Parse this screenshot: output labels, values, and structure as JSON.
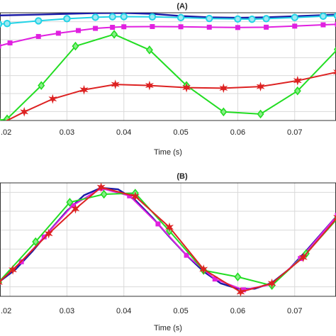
{
  "chart_data": [
    {
      "type": "line",
      "title": "(A)",
      "xlabel": "Time (s)",
      "ylabel": "",
      "xlim": [
        0.018,
        0.0775
      ],
      "ylim": [
        0,
        1
      ],
      "x_ticks": [
        0.02,
        0.03,
        0.04,
        0.05,
        0.06,
        0.07
      ],
      "x_tick_labels": [
        ".02",
        "0.03",
        "0.04",
        "0.05",
        "0.06",
        "0.07"
      ],
      "y_gridlines": 6,
      "grid": true,
      "series": [
        {
          "color": "#1a1aa6",
          "marker": "none",
          "points": [
            [
              0.018,
              0.975
            ],
            [
              0.025,
              0.983
            ],
            [
              0.03,
              0.99
            ],
            [
              0.035,
              0.997
            ],
            [
              0.04,
              0.998
            ],
            [
              0.045,
              0.99
            ],
            [
              0.05,
              0.97
            ],
            [
              0.055,
              0.958
            ],
            [
              0.06,
              0.953
            ],
            [
              0.065,
              0.958
            ],
            [
              0.07,
              0.968
            ],
            [
              0.075,
              0.978
            ],
            [
              0.0775,
              0.982
            ]
          ]
        },
        {
          "color": "#22d3e6",
          "marker": "circle",
          "points": [
            [
              0.018,
              0.895
            ],
            [
              0.0195,
              0.9
            ],
            [
              0.025,
              0.925
            ],
            [
              0.03,
              0.945
            ],
            [
              0.035,
              0.958
            ],
            [
              0.038,
              0.963
            ],
            [
              0.04,
              0.964
            ],
            [
              0.045,
              0.962
            ],
            [
              0.05,
              0.955
            ],
            [
              0.055,
              0.947
            ],
            [
              0.06,
              0.942
            ],
            [
              0.0625,
              0.94
            ],
            [
              0.065,
              0.945
            ],
            [
              0.07,
              0.956
            ],
            [
              0.075,
              0.968
            ],
            [
              0.0775,
              0.972
            ]
          ]
        },
        {
          "color": "#e020e0",
          "marker": "square",
          "points": [
            [
              0.018,
              0.69
            ],
            [
              0.02,
              0.72
            ],
            [
              0.025,
              0.78
            ],
            [
              0.0285,
              0.81
            ],
            [
              0.032,
              0.835
            ],
            [
              0.035,
              0.855
            ],
            [
              0.038,
              0.865
            ],
            [
              0.04,
              0.87
            ],
            [
              0.045,
              0.872
            ],
            [
              0.05,
              0.87
            ],
            [
              0.055,
              0.866
            ],
            [
              0.06,
              0.863
            ],
            [
              0.065,
              0.866
            ],
            [
              0.07,
              0.876
            ],
            [
              0.075,
              0.888
            ],
            [
              0.0775,
              0.893
            ]
          ]
        },
        {
          "color": "#22dd22",
          "marker": "diamond",
          "points": [
            [
              0.018,
              0.0
            ],
            [
              0.0195,
              0.015
            ],
            [
              0.0255,
              0.325
            ],
            [
              0.0315,
              0.69
            ],
            [
              0.0383,
              0.8
            ],
            [
              0.0445,
              0.655
            ],
            [
              0.051,
              0.325
            ],
            [
              0.0575,
              0.08
            ],
            [
              0.064,
              0.06
            ],
            [
              0.0705,
              0.275
            ],
            [
              0.0775,
              0.66
            ]
          ]
        },
        {
          "color": "#dd2222",
          "marker": "star",
          "points": [
            [
              0.018,
              -0.04
            ],
            [
              0.0225,
              0.08
            ],
            [
              0.0275,
              0.2
            ],
            [
              0.033,
              0.285
            ],
            [
              0.0385,
              0.335
            ],
            [
              0.0445,
              0.325
            ],
            [
              0.051,
              0.305
            ],
            [
              0.0575,
              0.3
            ],
            [
              0.064,
              0.315
            ],
            [
              0.0705,
              0.37
            ],
            [
              0.0775,
              0.45
            ]
          ]
        }
      ]
    },
    {
      "type": "line",
      "title": "(B)",
      "xlabel": "Time (s)",
      "ylabel": "",
      "xlim": [
        0.018,
        0.0775
      ],
      "ylim": [
        -0.05,
        1
      ],
      "x_ticks": [
        0.02,
        0.03,
        0.04,
        0.05,
        0.06,
        0.07
      ],
      "x_tick_labels": [
        ".02",
        "0.03",
        "0.04",
        "0.05",
        "0.06",
        "0.07"
      ],
      "y_gridlines": 6,
      "grid": true,
      "series": [
        {
          "color": "#1a1aa6",
          "marker": "none",
          "points": [
            [
              0.018,
              0.08
            ],
            [
              0.021,
              0.2
            ],
            [
              0.024,
              0.37
            ],
            [
              0.027,
              0.56
            ],
            [
              0.03,
              0.74
            ],
            [
              0.033,
              0.885
            ],
            [
              0.036,
              0.955
            ],
            [
              0.039,
              0.94
            ],
            [
              0.042,
              0.84
            ],
            [
              0.045,
              0.68
            ],
            [
              0.048,
              0.5
            ],
            [
              0.051,
              0.33
            ],
            [
              0.054,
              0.18
            ],
            [
              0.057,
              0.07
            ],
            [
              0.06,
              0.02
            ],
            [
              0.063,
              0.02
            ],
            [
              0.066,
              0.075
            ],
            [
              0.069,
              0.2
            ],
            [
              0.072,
              0.37
            ],
            [
              0.075,
              0.55
            ],
            [
              0.0775,
              0.7
            ]
          ]
        },
        {
          "color": "#e020e0",
          "marker": "square",
          "points": [
            [
              0.018,
              0.08
            ],
            [
              0.022,
              0.27
            ],
            [
              0.026,
              0.5
            ],
            [
              0.031,
              0.79
            ],
            [
              0.036,
              0.95
            ],
            [
              0.041,
              0.88
            ],
            [
              0.046,
              0.62
            ],
            [
              0.051,
              0.33
            ],
            [
              0.056,
              0.11
            ],
            [
              0.061,
              0.01
            ],
            [
              0.066,
              0.06
            ],
            [
              0.071,
              0.3
            ],
            [
              0.0775,
              0.7
            ]
          ]
        },
        {
          "color": "#22dd22",
          "marker": "diamond",
          "points": [
            [
              0.018,
              0.08
            ],
            [
              0.0245,
              0.455
            ],
            [
              0.0305,
              0.82
            ],
            [
              0.0365,
              0.895
            ],
            [
              0.042,
              0.905
            ],
            [
              0.048,
              0.555
            ],
            [
              0.054,
              0.19
            ],
            [
              0.06,
              0.13
            ],
            [
              0.066,
              0.05
            ],
            [
              0.072,
              0.345
            ],
            [
              0.0775,
              0.67
            ]
          ]
        },
        {
          "color": "#dd2222",
          "marker": "star",
          "points": [
            [
              0.018,
              0.08
            ],
            [
              0.0205,
              0.195
            ],
            [
              0.0268,
              0.53
            ],
            [
              0.0315,
              0.76
            ],
            [
              0.036,
              0.96
            ],
            [
              0.042,
              0.875
            ],
            [
              0.048,
              0.59
            ],
            [
              0.054,
              0.2
            ],
            [
              0.0605,
              -0.01
            ],
            [
              0.066,
              0.07
            ],
            [
              0.0715,
              0.31
            ],
            [
              0.0775,
              0.68
            ]
          ]
        }
      ]
    }
  ]
}
